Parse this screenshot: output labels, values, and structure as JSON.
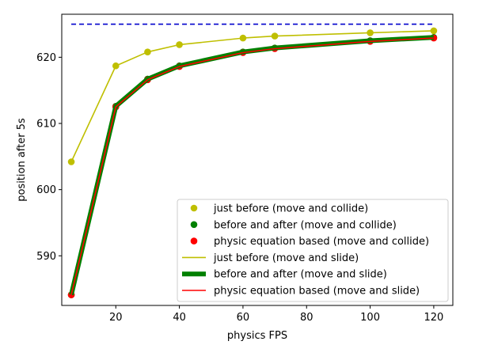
{
  "chart_data": {
    "type": "line",
    "xlabel": "physics FPS",
    "ylabel": "position after 5s",
    "xlim": [
      3,
      126
    ],
    "ylim": [
      582.5,
      626.5
    ],
    "xticks": [
      20,
      40,
      60,
      80,
      100,
      120
    ],
    "yticks": [
      590,
      600,
      610,
      620
    ],
    "x": [
      6,
      20,
      30,
      40,
      60,
      70,
      100,
      120
    ],
    "reference_line": {
      "y": 625,
      "x_range": [
        6,
        120
      ],
      "style": "dashed",
      "color": "#0000cc"
    },
    "legend_position": "lower-right",
    "series": [
      {
        "name": "just before (move and collide)",
        "kind": "marker",
        "color": "#bfbf00",
        "values": [
          604.2,
          618.7,
          620.8,
          621.9,
          622.9,
          623.2,
          623.7,
          624.0
        ]
      },
      {
        "name": "before and after (move and collide)",
        "kind": "marker",
        "color": "#008000",
        "values": [
          584.1,
          612.6,
          616.7,
          618.7,
          620.8,
          621.4,
          622.5,
          623.0
        ]
      },
      {
        "name": "physic equation based (move and collide)",
        "kind": "marker",
        "color": "#ff0000",
        "values": [
          584.1,
          612.5,
          616.6,
          618.6,
          620.7,
          621.3,
          622.4,
          622.9
        ]
      },
      {
        "name": "just before (move and slide)",
        "kind": "line",
        "color": "#bfbf00",
        "values": [
          604.2,
          618.7,
          620.8,
          621.9,
          622.9,
          623.2,
          623.7,
          624.0
        ]
      },
      {
        "name": "before and after (move and slide)",
        "kind": "thick-line",
        "color": "#008000",
        "values": [
          584.1,
          612.6,
          616.7,
          618.7,
          620.8,
          621.4,
          622.5,
          623.0
        ]
      },
      {
        "name": "physic equation based (move and slide)",
        "kind": "line",
        "color": "#ff0000",
        "values": [
          584.1,
          612.5,
          616.6,
          618.6,
          620.7,
          621.3,
          622.4,
          622.9
        ]
      }
    ]
  }
}
